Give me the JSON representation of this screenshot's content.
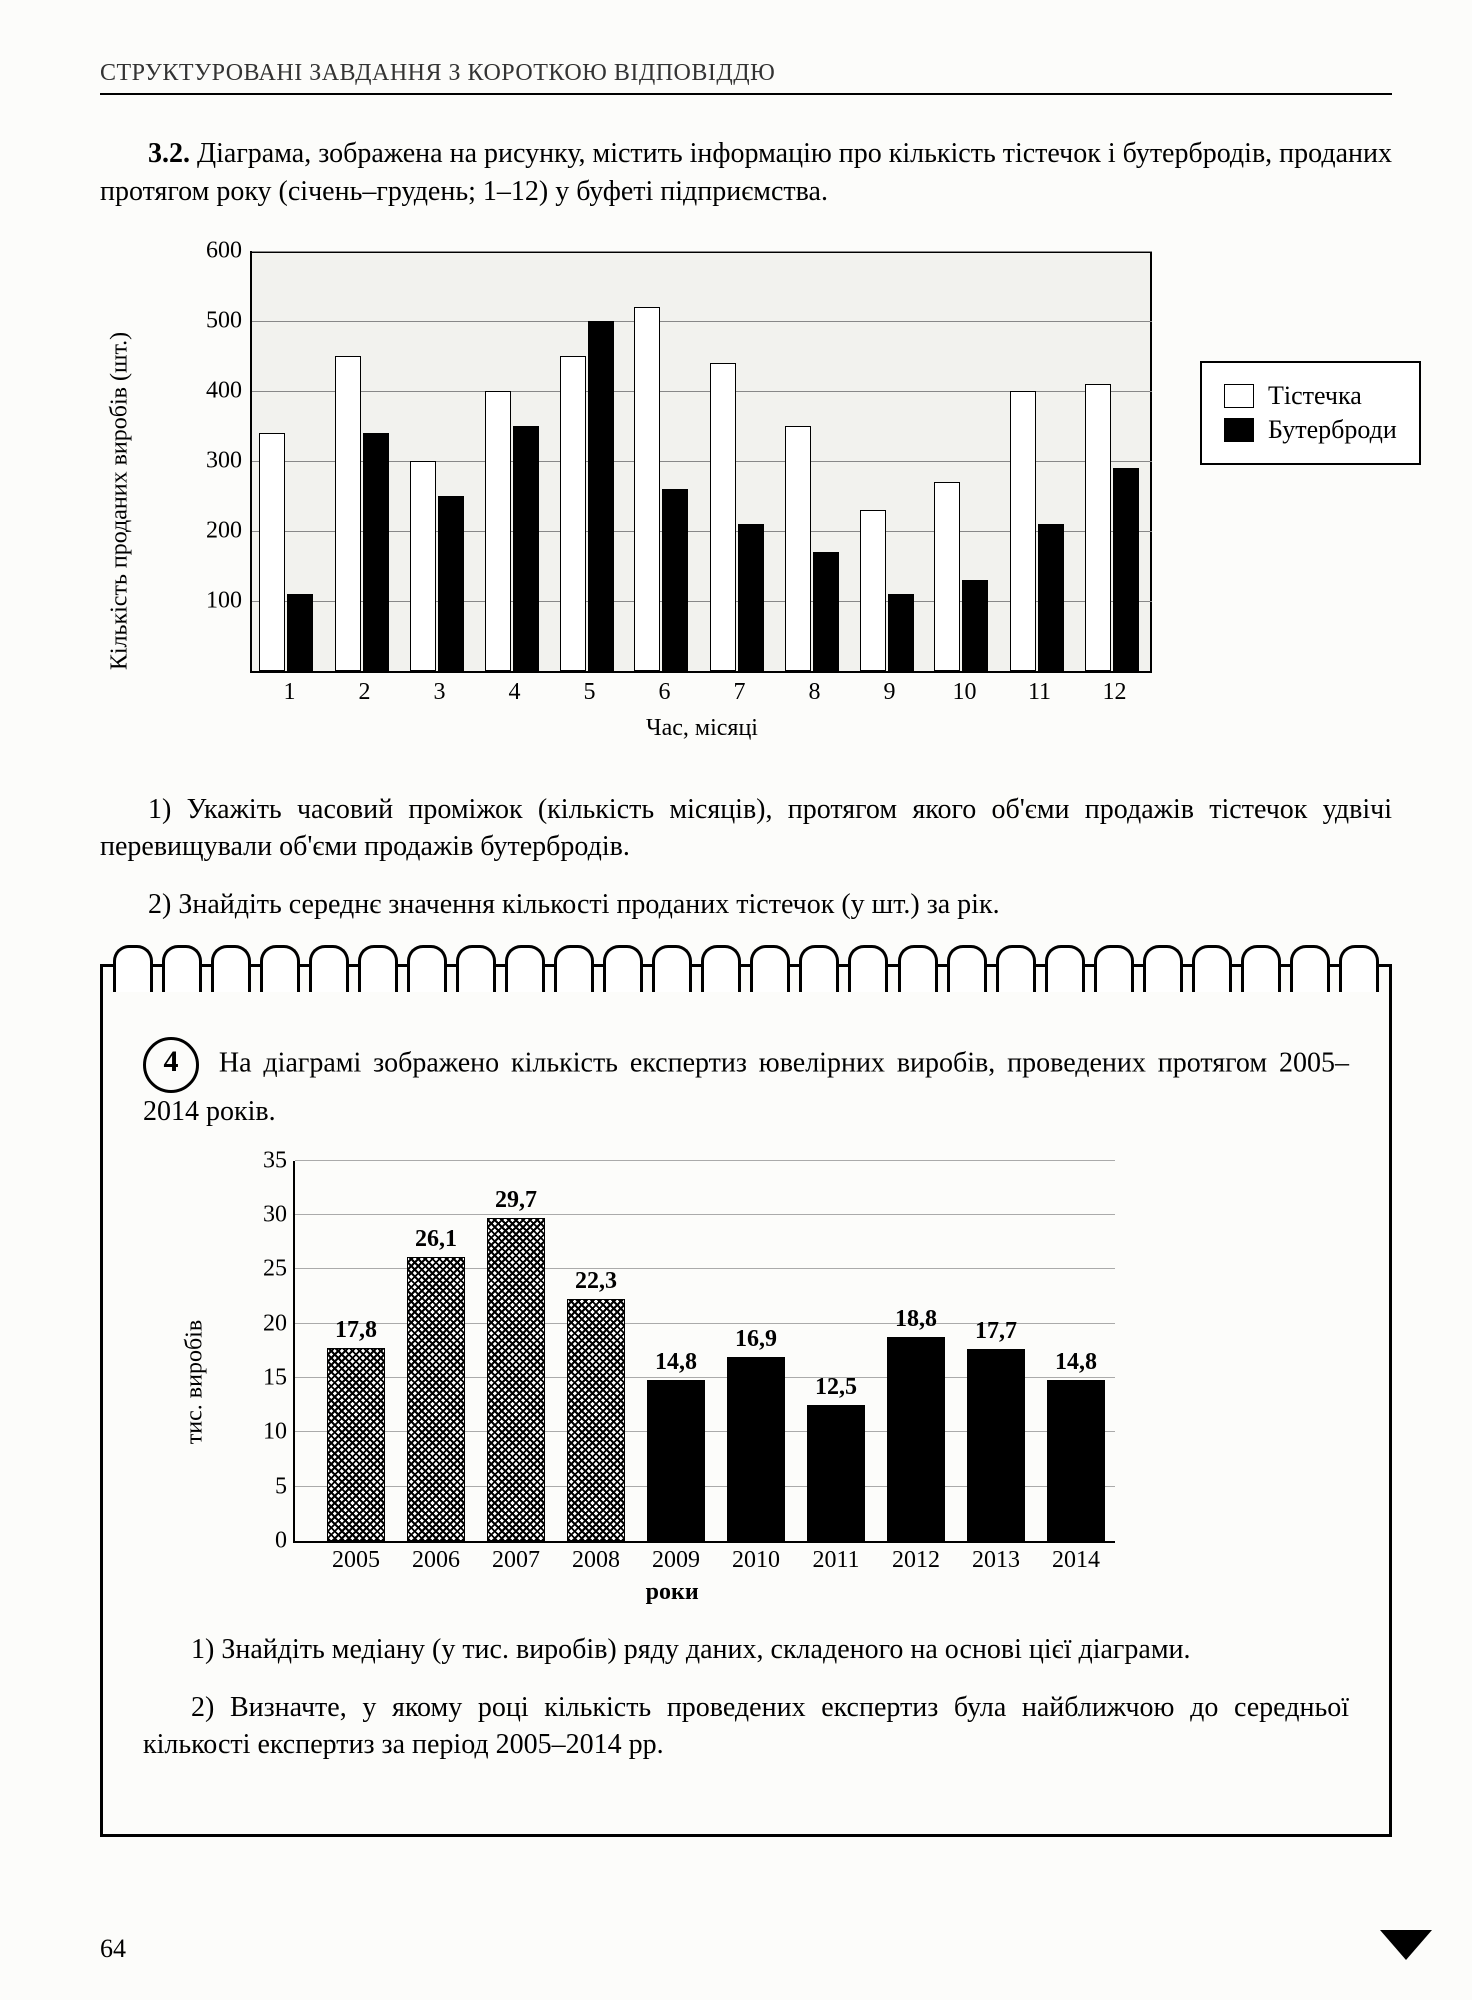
{
  "header": "СТРУКТУРОВАНІ ЗАВДАННЯ З КОРОТКОЮ ВІДПОВІДДЮ",
  "task32": {
    "num": "3.2.",
    "text": "Діаграма, зображена на рисунку, містить інформацію про кількість тістечок і бутербродів, проданих протягом року (січень–грудень; 1–12) у буфеті підприємства."
  },
  "chart1": {
    "type": "bar-grouped",
    "ylabel": "Кількість проданих виробів (шт.)",
    "xlabel": "Час, місяці",
    "ylim": [
      0,
      600
    ],
    "ytick_step": 100,
    "categories": [
      "1",
      "2",
      "3",
      "4",
      "5",
      "6",
      "7",
      "8",
      "9",
      "10",
      "11",
      "12"
    ],
    "series": [
      {
        "name": "Тістечка",
        "color": "#ffffff",
        "values": [
          340,
          450,
          300,
          400,
          450,
          520,
          440,
          350,
          230,
          270,
          400,
          410
        ]
      },
      {
        "name": "Бутерброди",
        "color": "#000000",
        "values": [
          110,
          340,
          250,
          350,
          500,
          260,
          210,
          170,
          110,
          130,
          210,
          290
        ]
      }
    ],
    "background": "#f2f2ee",
    "grid_color": "#888888",
    "label_fontsize": 24
  },
  "q32_1": "1) Укажіть часовий проміжок (кількість місяців), протягом якого об'єми продажів тістечок удвічі перевищували об'єми продажів бутербродів.",
  "q32_2": "2) Знайдіть середнє значення кількості проданих тістечок (у шт.) за рік.",
  "task4": {
    "num": "4",
    "text": "На діаграмі зображено кількість експертиз ювелірних виробів, проведених протягом 2005–2014 років."
  },
  "chart2": {
    "type": "bar",
    "ylabel": "тис. виробів",
    "xlabel": "роки",
    "ylim": [
      0,
      35
    ],
    "ytick_step": 5,
    "categories": [
      "2005",
      "2006",
      "2007",
      "2008",
      "2009",
      "2010",
      "2011",
      "2012",
      "2013",
      "2014"
    ],
    "values": [
      17.8,
      26.1,
      29.7,
      22.3,
      14.8,
      16.9,
      12.5,
      18.8,
      17.7,
      14.8
    ],
    "value_labels": [
      "17,8",
      "26,1",
      "29,7",
      "22,3",
      "14,8",
      "16,9",
      "12,5",
      "18,8",
      "17,7",
      "14,8"
    ],
    "bar_styles": [
      "tex",
      "tex",
      "tex",
      "tex",
      "black",
      "black",
      "black",
      "black",
      "black",
      "black"
    ],
    "label_fontsize": 24
  },
  "q4_1": "1) Знайдіть медіану (у тис. виробів) ряду даних, складеного на основі цієї діаграми.",
  "q4_2": "2) Визначте, у якому році кількість проведених експертиз була найближчою до середньої кількості експертиз за період 2005–2014 рр.",
  "pageno": "64"
}
